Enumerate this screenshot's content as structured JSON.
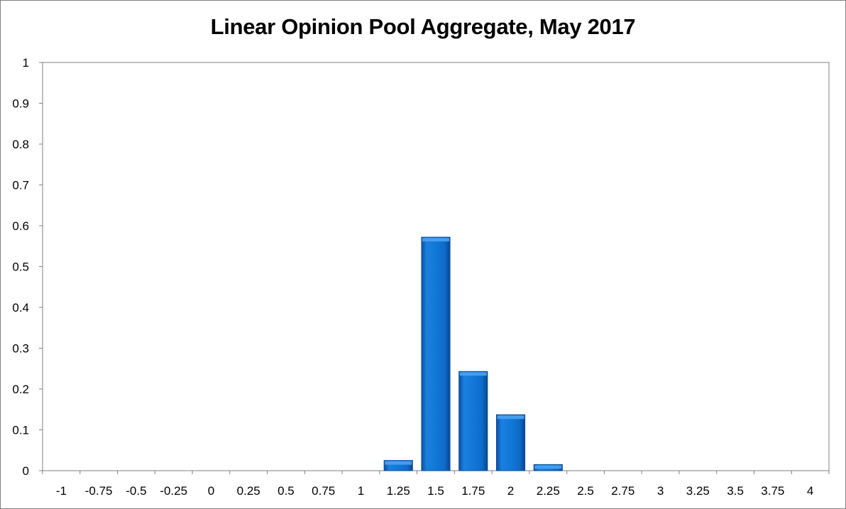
{
  "chart_data": {
    "type": "bar",
    "title": "Linear Opinion Pool Aggregate, May 2017",
    "xlabel": "",
    "ylabel": "",
    "categories": [
      "-1",
      "-0.75",
      "-0.5",
      "-0.25",
      "0",
      "0.25",
      "0.5",
      "0.75",
      "1",
      "1.25",
      "1.5",
      "1.75",
      "2",
      "2.25",
      "2.5",
      "2.75",
      "3",
      "3.25",
      "3.5",
      "3.75",
      "4"
    ],
    "values": [
      0,
      0,
      0,
      0,
      0,
      0,
      0,
      0,
      0,
      0.025,
      0.572,
      0.243,
      0.137,
      0.015,
      0,
      0,
      0,
      0,
      0,
      0,
      0
    ],
    "ylim": [
      0,
      1
    ],
    "yticks": [
      "0",
      "0.1",
      "0.2",
      "0.3",
      "0.4",
      "0.5",
      "0.6",
      "0.7",
      "0.8",
      "0.9",
      "1"
    ],
    "grid": false,
    "legend": "none",
    "bar_color": "#0f6fd0"
  }
}
